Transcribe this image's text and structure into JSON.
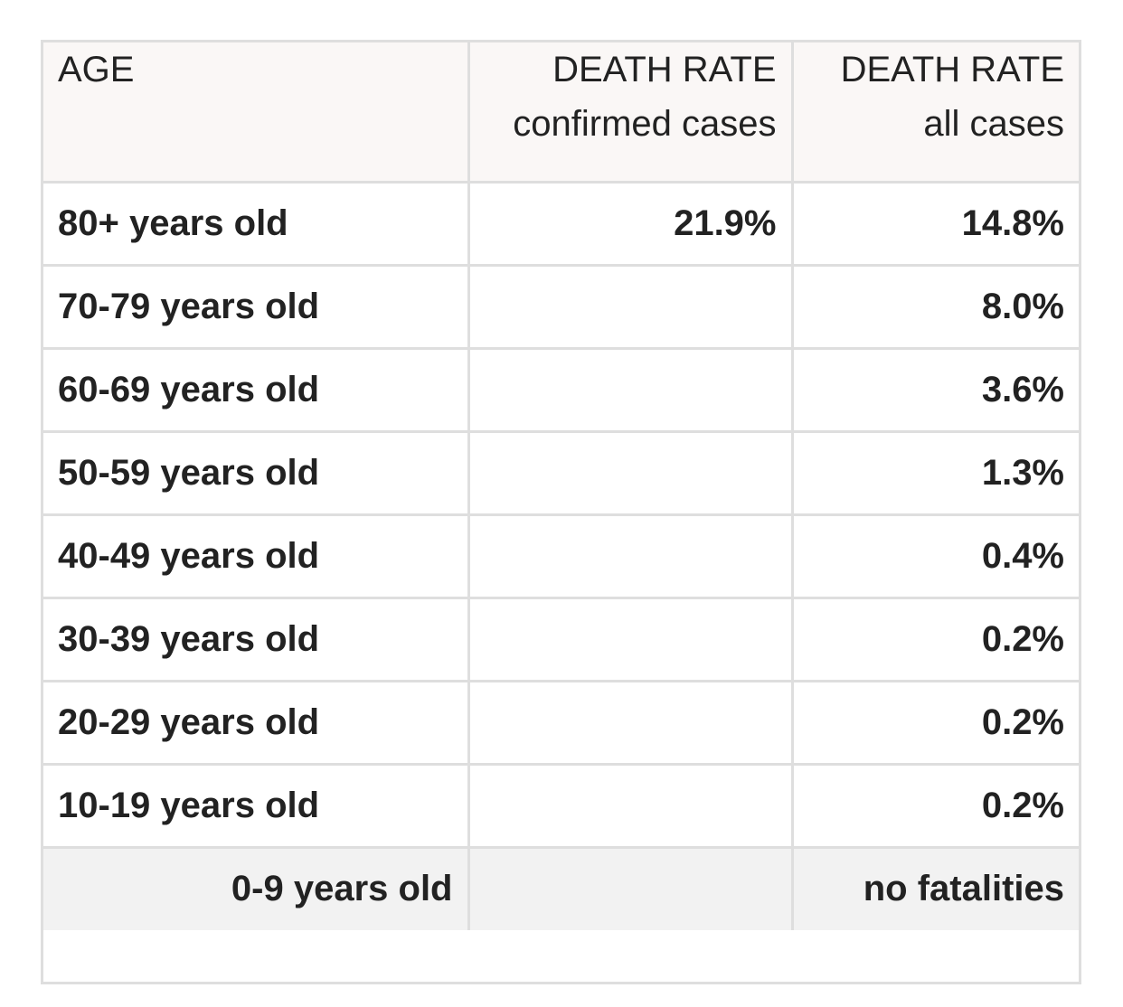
{
  "table": {
    "headers": [
      {
        "line1": "AGE",
        "line2": ""
      },
      {
        "line1": "DEATH RATE",
        "line2": "confirmed cases"
      },
      {
        "line1": "DEATH RATE",
        "line2": "all cases"
      }
    ],
    "rows": [
      {
        "age": "80+ years old",
        "confirmed": "21.9%",
        "all": "14.8%"
      },
      {
        "age": "70-79 years old",
        "confirmed": "",
        "all": "8.0%"
      },
      {
        "age": "60-69 years old",
        "confirmed": "",
        "all": "3.6%"
      },
      {
        "age": "50-59 years old",
        "confirmed": "",
        "all": "1.3%"
      },
      {
        "age": "40-49 years old",
        "confirmed": "",
        "all": "0.4%"
      },
      {
        "age": "30-39 years old",
        "confirmed": "",
        "all": "0.2%"
      },
      {
        "age": "20-29 years old",
        "confirmed": "",
        "all": "0.2%"
      },
      {
        "age": "10-19 years old",
        "confirmed": "",
        "all": "0.2%"
      },
      {
        "age": "0-9 years old",
        "confirmed": "",
        "all": "no fatalities"
      }
    ]
  },
  "colors": {
    "border": "#dedede",
    "header_bg": "#faf7f6",
    "last_row_bg": "#f2f2f2",
    "text": "#222222"
  }
}
